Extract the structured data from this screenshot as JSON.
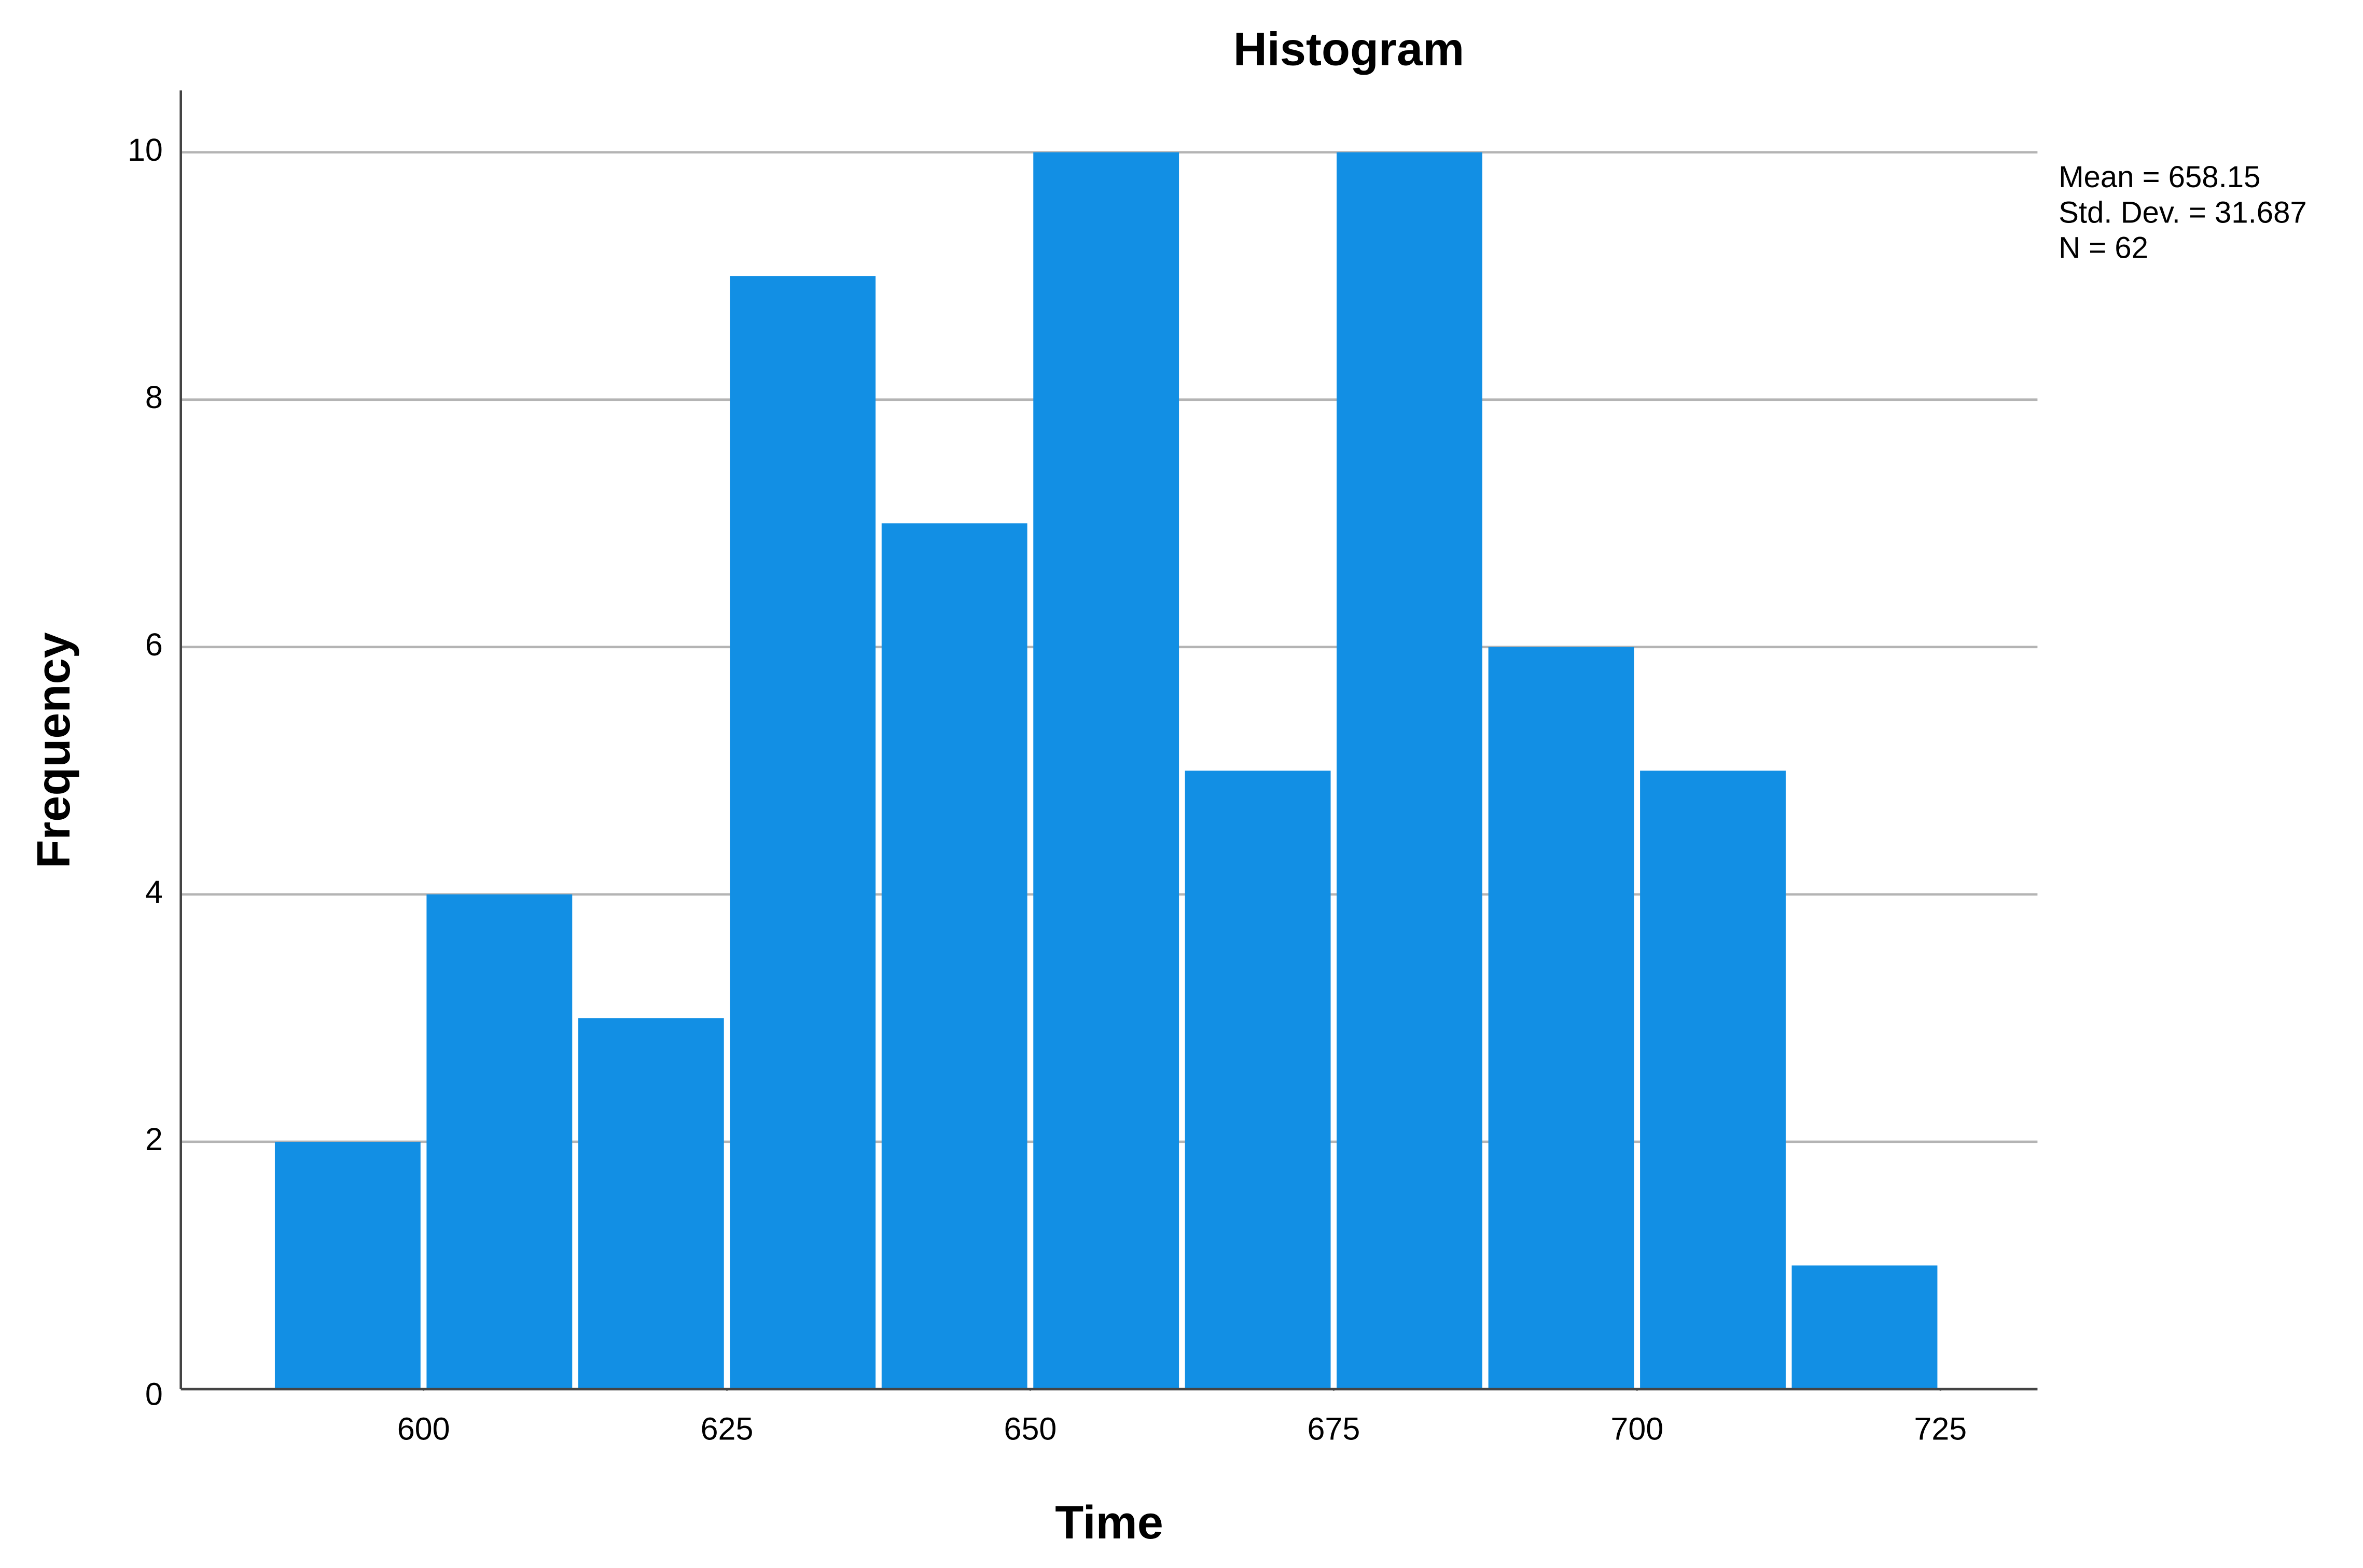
{
  "chart_data": {
    "type": "histogram",
    "title": "Histogram",
    "x_label": "Time",
    "y_label": "Frequency",
    "bins": [
      587.5,
      600,
      612.5,
      625,
      637.5,
      650,
      662.5,
      675,
      687.5,
      700,
      712.5,
      725
    ],
    "values": [
      2,
      4,
      3,
      9,
      7,
      10,
      5,
      10,
      6,
      5,
      1
    ],
    "color": "#128fe4",
    "xlim": [
      580,
      733
    ],
    "xticks": [
      600,
      625,
      650,
      675,
      700,
      725
    ],
    "ylim": [
      0,
      10.5
    ],
    "yticks": [
      0,
      2,
      4,
      6,
      8,
      10
    ],
    "grid": true,
    "annotations": [
      "Mean = 658.15",
      "Std. Dev. = 31.687",
      "N = 62"
    ]
  }
}
